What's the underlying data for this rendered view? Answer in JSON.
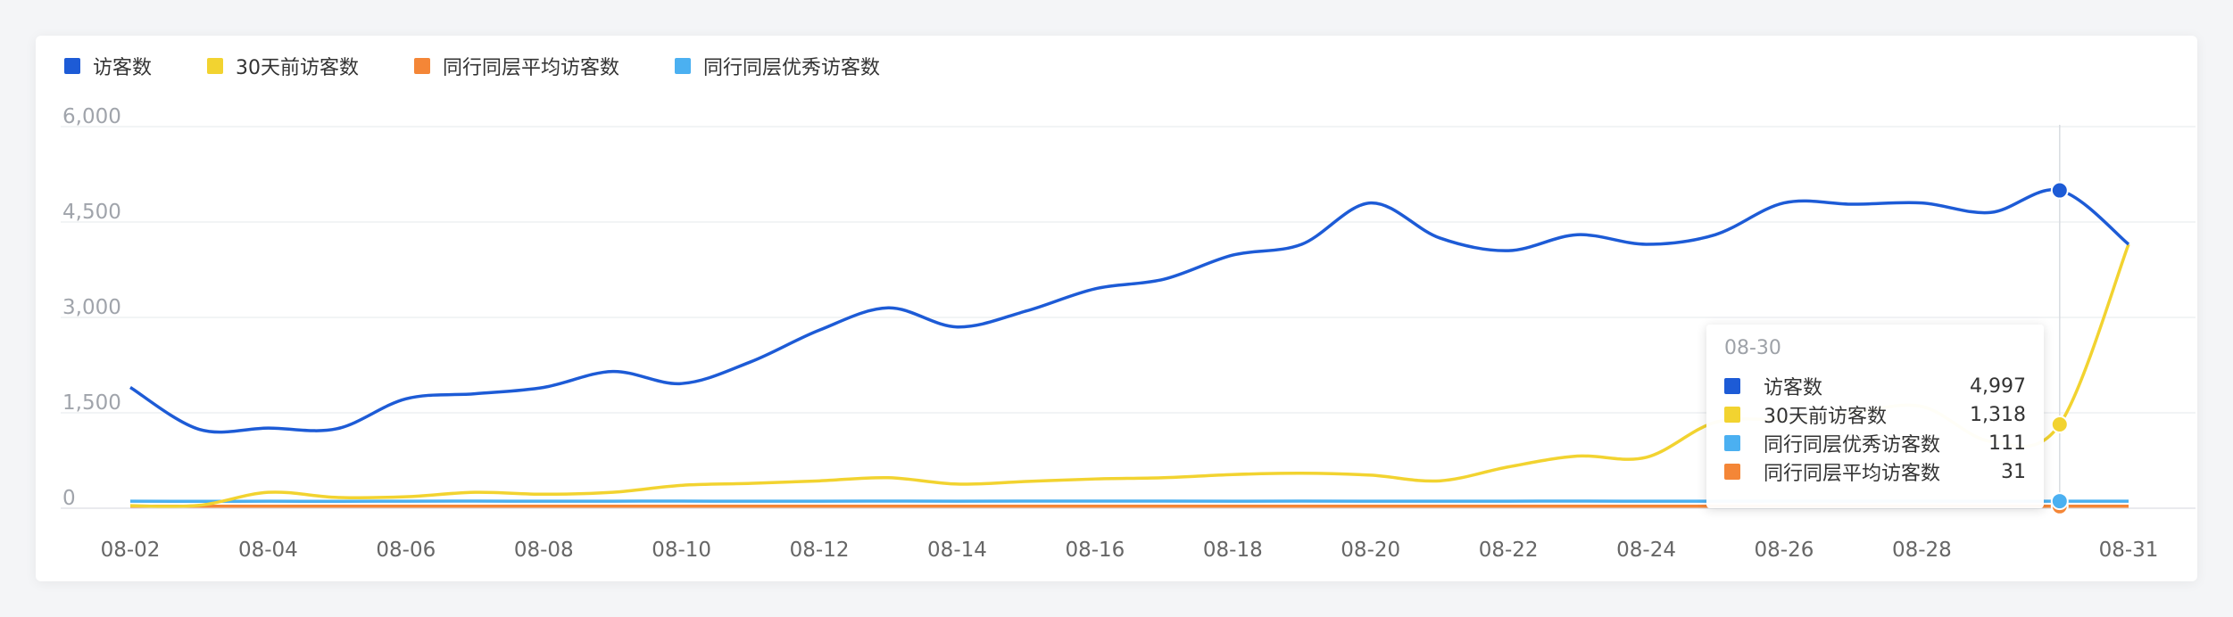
{
  "chart_data": {
    "type": "line",
    "x": [
      "08-02",
      "08-03",
      "08-04",
      "08-05",
      "08-06",
      "08-07",
      "08-08",
      "08-09",
      "08-10",
      "08-11",
      "08-12",
      "08-13",
      "08-14",
      "08-15",
      "08-16",
      "08-17",
      "08-18",
      "08-19",
      "08-20",
      "08-21",
      "08-22",
      "08-23",
      "08-24",
      "08-25",
      "08-26",
      "08-27",
      "08-28",
      "08-29",
      "08-30",
      "08-31"
    ],
    "x_tick_labels": [
      "08-02",
      "08-04",
      "08-06",
      "08-08",
      "08-10",
      "08-12",
      "08-14",
      "08-16",
      "08-18",
      "08-20",
      "08-22",
      "08-24",
      "08-26",
      "08-28",
      "08-31"
    ],
    "y_tick_labels": [
      "0",
      "1,500",
      "3,000",
      "4,500",
      "6,000"
    ],
    "ylim": [
      0,
      6000
    ],
    "grid": true,
    "legend_position": "top-left",
    "series": [
      {
        "name": "访客数",
        "color": "#1d5bd6",
        "values": [
          1900,
          1240,
          1260,
          1250,
          1720,
          1800,
          1900,
          2150,
          1960,
          2300,
          2800,
          3150,
          2850,
          3100,
          3450,
          3600,
          3980,
          4150,
          4800,
          4250,
          4050,
          4300,
          4150,
          4300,
          4800,
          4780,
          4800,
          4650,
          4997,
          4150
        ]
      },
      {
        "name": "30天前访客数",
        "color": "#f2d330",
        "values": [
          40,
          45,
          250,
          170,
          180,
          250,
          220,
          250,
          360,
          390,
          430,
          480,
          380,
          420,
          460,
          480,
          530,
          550,
          520,
          430,
          650,
          820,
          800,
          1350,
          1400,
          1500,
          1600,
          1050,
          1318,
          4150
        ]
      },
      {
        "name": "同行同层平均访客数",
        "color": "#f48637",
        "values": [
          31,
          31,
          31,
          31,
          31,
          31,
          31,
          31,
          31,
          31,
          31,
          31,
          31,
          31,
          31,
          31,
          31,
          31,
          31,
          31,
          31,
          31,
          31,
          31,
          31,
          31,
          31,
          31,
          31,
          31
        ]
      },
      {
        "name": "同行同层优秀访客数",
        "color": "#4bb0f1",
        "values": [
          111,
          108,
          110,
          109,
          111,
          112,
          110,
          111,
          112,
          110,
          111,
          112,
          111,
          112,
          113,
          112,
          111,
          112,
          111,
          110,
          111,
          112,
          110,
          111,
          112,
          111,
          112,
          110,
          111,
          111
        ]
      }
    ],
    "hover_index": 28
  },
  "tooltip": {
    "date": "08-30",
    "rows": [
      {
        "name": "访客数",
        "value": "4,997",
        "color": "#1d5bd6"
      },
      {
        "name": "30天前访客数",
        "value": "1,318",
        "color": "#f2d330"
      },
      {
        "name": "同行同层优秀访客数",
        "value": "111",
        "color": "#4bb0f1"
      },
      {
        "name": "同行同层平均访客数",
        "value": "31",
        "color": "#f48637"
      }
    ]
  }
}
